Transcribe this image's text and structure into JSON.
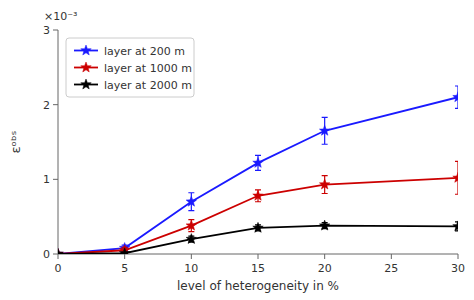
{
  "chart_data": {
    "type": "line",
    "x": [
      0,
      5,
      10,
      15,
      20,
      30
    ],
    "series": [
      {
        "name": "layer at 200 m",
        "color": "#1a1aff",
        "marker": "star",
        "values": [
          0.0,
          8e-05,
          0.0007,
          0.00122,
          0.00165,
          0.0021
        ],
        "errors": [
          0.0,
          4e-05,
          0.00012,
          0.0001,
          0.00018,
          0.00015
        ]
      },
      {
        "name": "layer at 1000 m",
        "color": "#cc0000",
        "marker": "star",
        "values": [
          0.0,
          5e-05,
          0.00038,
          0.00078,
          0.00093,
          0.00102
        ],
        "errors": [
          0.0,
          4e-05,
          8e-05,
          8e-05,
          0.00012,
          0.00022
        ]
      },
      {
        "name": "layer at 2000 m",
        "color": "#000000",
        "marker": "star",
        "values": [
          0.0,
          1e-05,
          0.0002,
          0.00035,
          0.00038,
          0.00037
        ],
        "errors": [
          0.0,
          1e-05,
          4e-05,
          4e-05,
          4e-05,
          6e-05
        ]
      }
    ],
    "xlabel": "level of heterogeneity in %",
    "ylabel": "εᵒᵇˢ",
    "annotations": [
      "×10⁻³"
    ],
    "xlim": [
      0,
      30
    ],
    "ylim": [
      0,
      0.003
    ],
    "xticks": [
      0,
      5,
      10,
      15,
      20,
      25,
      30
    ],
    "yticks": [
      0,
      {
        "value": 0.001,
        "label": "1"
      },
      {
        "value": 0.002,
        "label": "2"
      },
      {
        "value": 0.003,
        "label": "3"
      }
    ],
    "legend": "upper left",
    "grid": false
  }
}
